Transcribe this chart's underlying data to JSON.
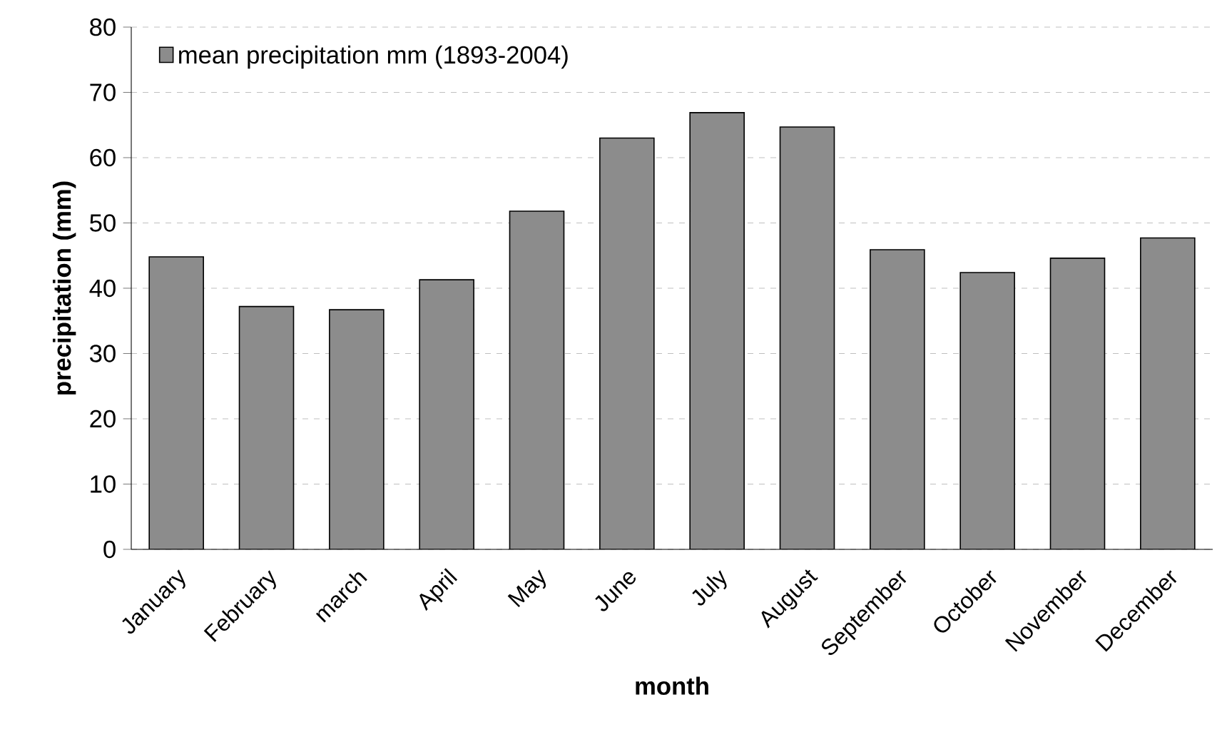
{
  "chart_data": {
    "type": "bar",
    "xlabel": "month",
    "ylabel": "precipitation (mm)",
    "categories": [
      "January",
      "February",
      "march",
      "April",
      "May",
      "June",
      "July",
      "August",
      "September",
      "October",
      "November",
      "December"
    ],
    "series": [
      {
        "name": "mean precipitation mm (1893-2004)",
        "color": "#8c8c8c",
        "values": [
          44.8,
          37.2,
          36.7,
          41.3,
          51.8,
          63,
          66.9,
          64.7,
          45.9,
          42.4,
          44.6,
          47.7
        ]
      }
    ],
    "ylim": [
      0,
      80
    ],
    "yticks": [
      0,
      10,
      20,
      30,
      40,
      50,
      60,
      70,
      80
    ],
    "grid": "y",
    "legend": "top left"
  }
}
